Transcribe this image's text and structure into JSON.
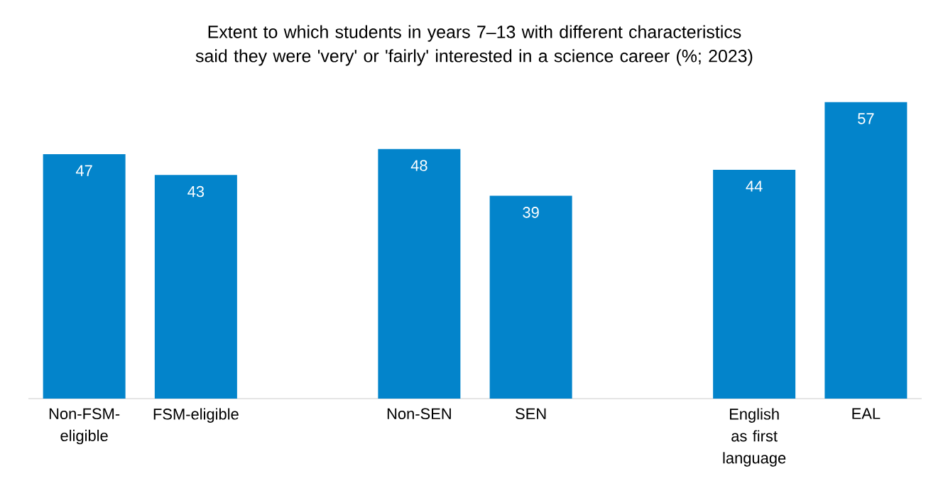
{
  "chart_data": {
    "type": "bar",
    "title": "Extent to which students in years 7–13 with different characteristics said they were 'very' or 'fairly' interested in a science career (%; 2023)",
    "categories": [
      "Non-FSM-eligible",
      "FSM-eligible",
      null,
      "Non-SEN",
      "SEN",
      null,
      "English as first language",
      "EAL"
    ],
    "values": [
      47,
      43,
      null,
      48,
      39,
      null,
      44,
      57
    ],
    "color": "#0384cb",
    "data_labels": true
  }
}
